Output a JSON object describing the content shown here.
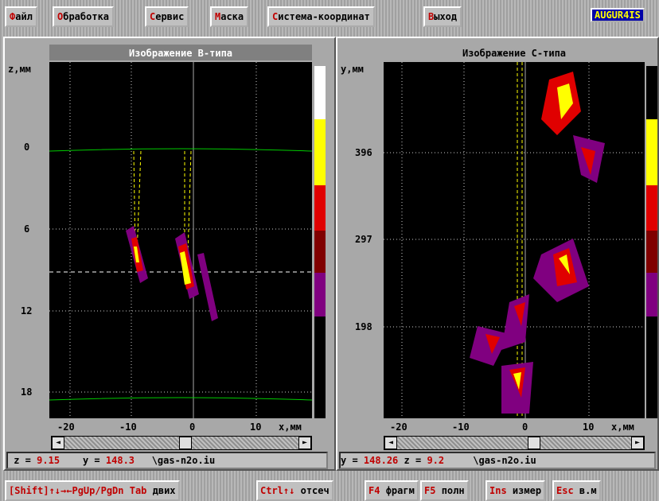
{
  "menu": {
    "items": [
      "Файл",
      "Обработка",
      "Сервис",
      "Маска",
      "Система-координат",
      "Выход"
    ],
    "badge": "AUGUR4IS"
  },
  "left_panel": {
    "title": "Изображение B-типа",
    "y_axis_label": "z,мм",
    "y_ticks": [
      "0",
      "6",
      "12",
      "18"
    ],
    "x_ticks": [
      "-20",
      "-10",
      "0",
      "10"
    ],
    "x_axis_label": "x,мм",
    "status": {
      "label1": "z =",
      "value1": "9.15",
      "label2": "y =",
      "value2": "148.3",
      "file": "\\gas-n2o.iu"
    }
  },
  "right_panel": {
    "title": "Изображение С-типа",
    "y_axis_label": "y,мм",
    "y_ticks": [
      "396",
      "297",
      "198"
    ],
    "x_ticks": [
      "-20",
      "-10",
      "0",
      "10"
    ],
    "x_axis_label": "x,мм",
    "status": {
      "label1": "y =",
      "value1": "148.26",
      "label2": "z =",
      "value2": "9.2",
      "file": "\\gas-n2o.iu"
    }
  },
  "function_bar": [
    {
      "key": "[Shift]↑↓→←PgUp/PgDn Tab",
      "label": "двих"
    },
    {
      "key": "Ctrl↑↓",
      "label": "отсеч"
    },
    {
      "key": "F4",
      "label": "фрагм"
    },
    {
      "key": "F5",
      "label": "полн"
    },
    {
      "key": "Ins",
      "label": "измер"
    },
    {
      "key": "Esc",
      "label": "в.м"
    }
  ]
}
